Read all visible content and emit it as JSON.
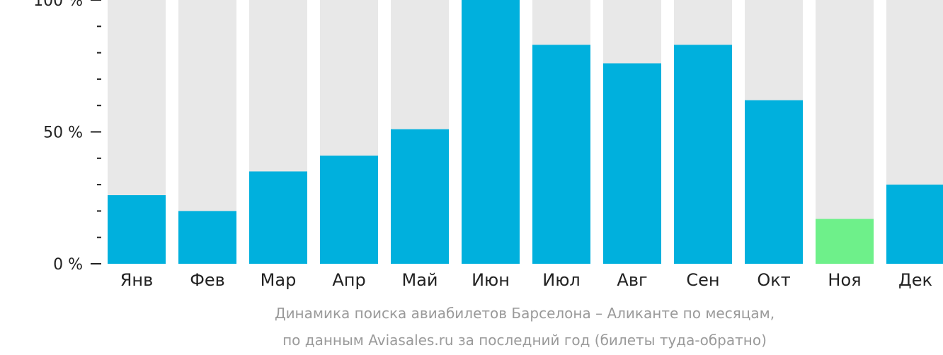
{
  "chart_data": {
    "type": "bar",
    "categories": [
      "Янв",
      "Фев",
      "Мар",
      "Апр",
      "Май",
      "Июн",
      "Июл",
      "Авг",
      "Сен",
      "Окт",
      "Ноя",
      "Дек"
    ],
    "values": [
      26,
      20,
      35,
      41,
      51,
      100,
      83,
      76,
      83,
      62,
      17,
      30
    ],
    "ylim": [
      0,
      100
    ],
    "y_ticks": [
      {
        "value": 0,
        "label": "0 %"
      },
      {
        "value": 50,
        "label": "50 %"
      },
      {
        "value": 100,
        "label": "100 %"
      }
    ],
    "y_minor_step": 10,
    "highlight_index": 10,
    "colors": {
      "bar": "#00b0dd",
      "highlight": "#6ef08a",
      "background_bar": "#e8e8e8",
      "axis": "#222222"
    },
    "caption": [
      "Динамика поиска авиабилетов Барселона – Аликанте по месяцам,",
      "по данным Aviasales.ru за последний год (билеты туда-обратно)"
    ]
  }
}
